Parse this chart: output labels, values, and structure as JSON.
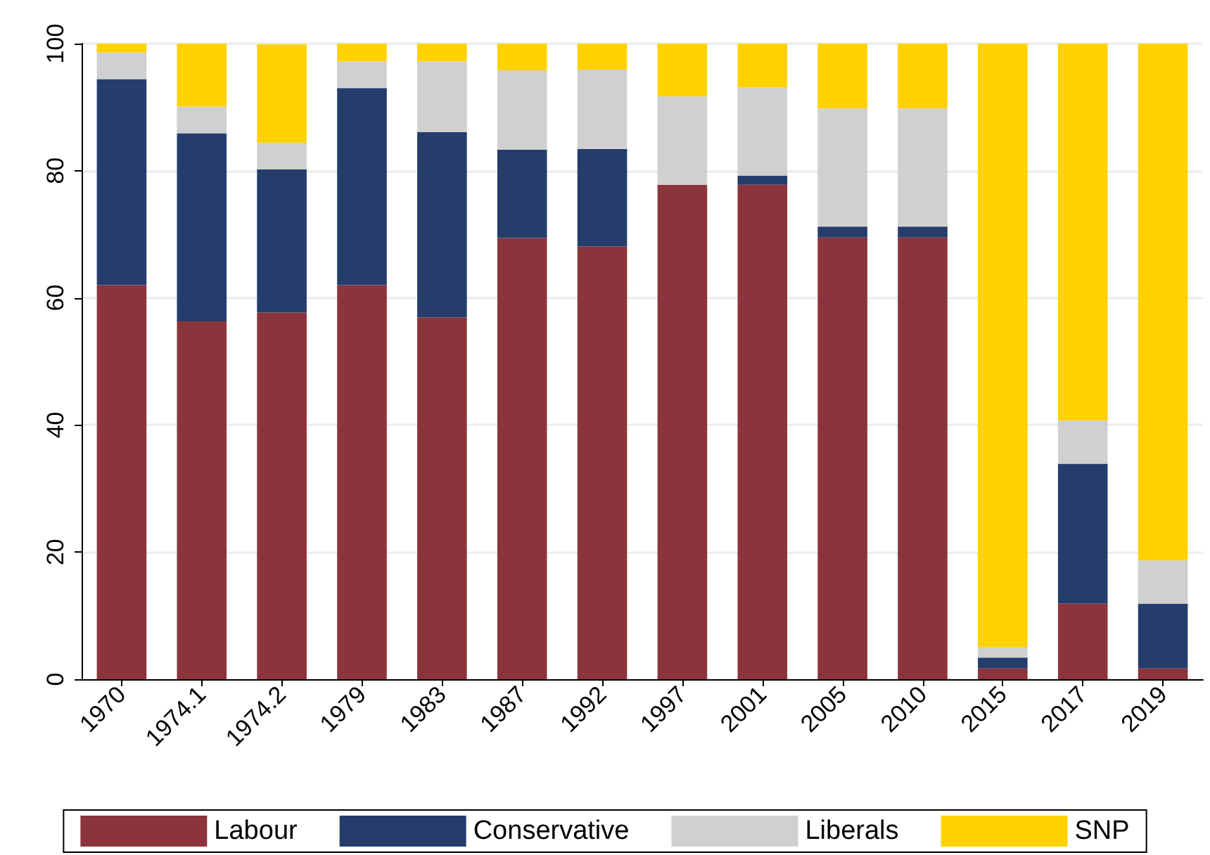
{
  "chart_data": {
    "type": "bar",
    "stacked": true,
    "categories": [
      "1970",
      "1974.1",
      "1974.2",
      "1979",
      "1983",
      "1987",
      "1992",
      "1997",
      "2001",
      "2005",
      "2010",
      "2015",
      "2017",
      "2019"
    ],
    "series": [
      {
        "name": "Labour",
        "color": "#8c343c",
        "values": [
          62.0,
          56.3,
          57.7,
          62.0,
          56.9,
          69.4,
          68.1,
          77.8,
          77.8,
          69.5,
          69.5,
          1.7,
          11.9,
          1.7
        ]
      },
      {
        "name": "Conservative",
        "color": "#243d6b",
        "values": [
          32.4,
          29.6,
          22.5,
          31.0,
          29.2,
          13.9,
          15.3,
          0,
          1.4,
          1.7,
          1.7,
          1.7,
          22.0,
          10.2
        ]
      },
      {
        "name": "Liberals",
        "color": "#d0d0d0",
        "values": [
          4.2,
          4.2,
          4.2,
          4.2,
          11.1,
          12.5,
          12.5,
          13.9,
          13.9,
          18.6,
          18.6,
          1.7,
          6.8,
          6.8
        ]
      },
      {
        "name": "SNP",
        "color": "#ffd200",
        "values": [
          1.4,
          9.9,
          15.5,
          2.8,
          2.8,
          4.2,
          4.2,
          8.3,
          6.9,
          10.2,
          10.2,
          94.9,
          59.3,
          81.4
        ]
      }
    ],
    "ylim": [
      0,
      100
    ],
    "yticks": [
      0,
      20,
      40,
      60,
      80,
      100
    ],
    "grid": "y",
    "legend": "bottom"
  }
}
